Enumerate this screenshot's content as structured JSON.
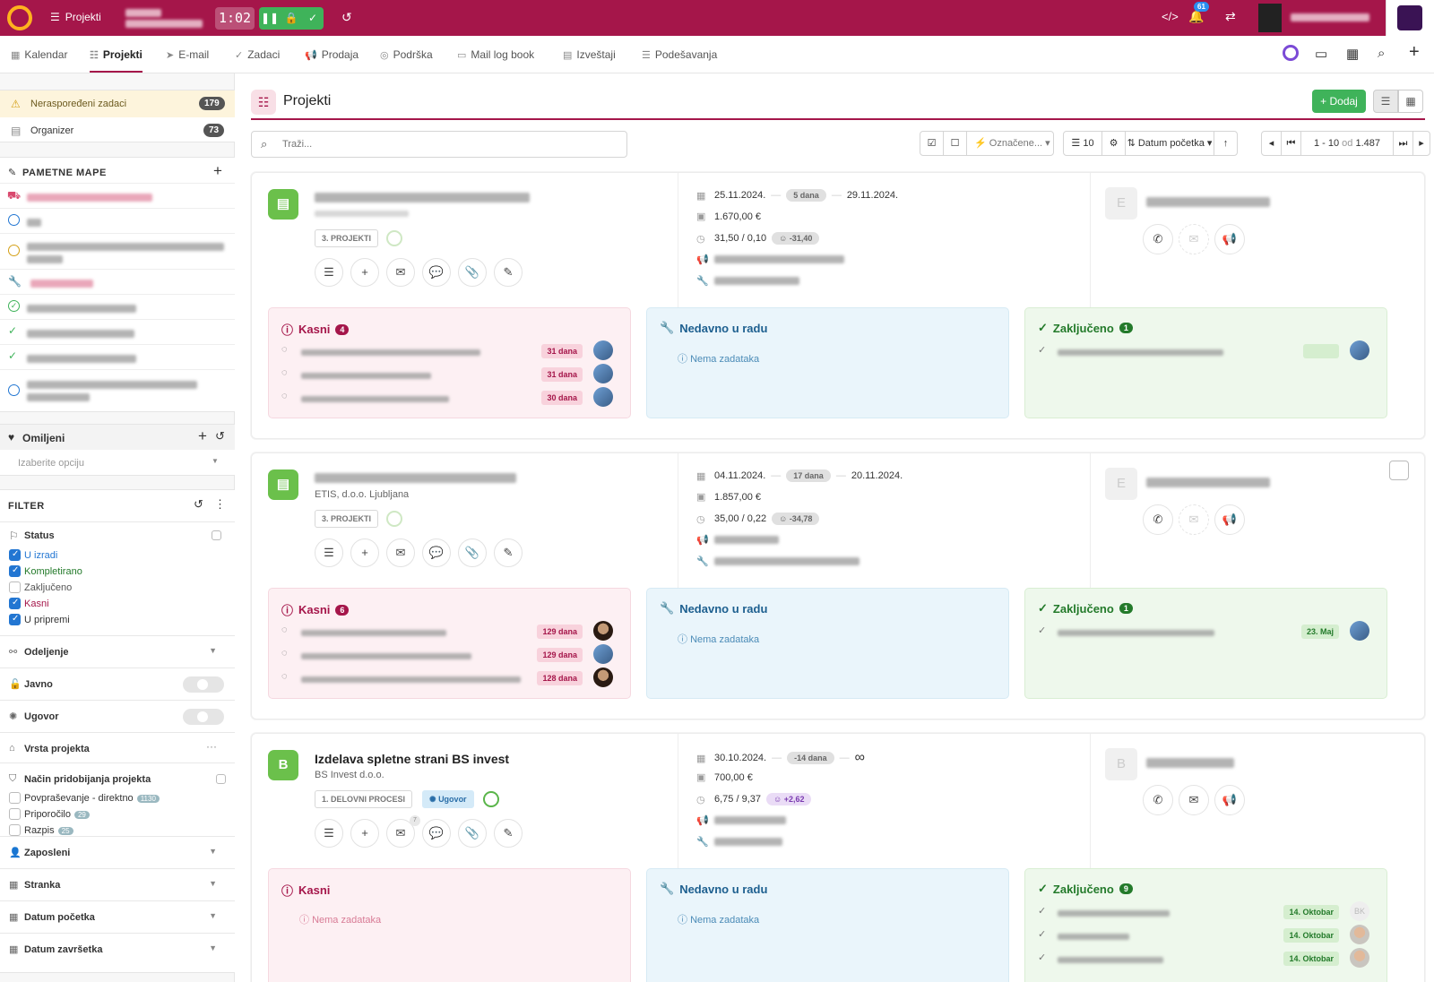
{
  "topbar": {
    "menu_label": "Projekti",
    "timer": "1:02",
    "notifications": "61"
  },
  "nav": {
    "items": [
      {
        "label": "Kalendar"
      },
      {
        "label": "Projekti"
      },
      {
        "label": "E-mail"
      },
      {
        "label": "Zadaci"
      },
      {
        "label": "Prodaja"
      },
      {
        "label": "Podrška"
      },
      {
        "label": "Mail log book"
      },
      {
        "label": "Izveštaji"
      },
      {
        "label": "Podešavanja"
      }
    ]
  },
  "sidebar": {
    "unassigned": {
      "label": "Neraspoređeni zadaci",
      "count": "179"
    },
    "organizer": {
      "label": "Organizer",
      "count": "73"
    },
    "smart_maps_title": "PAMETNE MAPE",
    "favorites": {
      "title": "Omiljeni",
      "placeholder": "Izaberite opciju"
    },
    "filter": {
      "title": "FILTER",
      "status_label": "Status",
      "statuses": [
        {
          "label": "U izradi",
          "checked": true,
          "color": "#2276d2"
        },
        {
          "label": "Kompletirano",
          "checked": true,
          "color": "#237a2a"
        },
        {
          "label": "Zaključeno",
          "checked": false,
          "color": "#555555"
        },
        {
          "label": "Kasni",
          "checked": true,
          "color": "#a5164a"
        },
        {
          "label": "U pripremi",
          "checked": true,
          "color": "#333333"
        }
      ],
      "odeljenje": "Odeljenje",
      "javno": "Javno",
      "ugovor": "Ugovor",
      "vrsta": "Vrsta projekta",
      "nacin": "Način pridobijanja projekta",
      "nacin_options": [
        {
          "label": "Povpraševanje - direktno",
          "count": "1130"
        },
        {
          "label": "Priporočilo",
          "count": "29"
        },
        {
          "label": "Razpis",
          "count": "25"
        }
      ],
      "zaposleni": "Zaposleni",
      "stranka": "Stranka",
      "datum_pocetka": "Datum početka",
      "datum_zavrsetka": "Datum završetka"
    }
  },
  "main": {
    "title": "Projekti",
    "add_button": "+ Dodaj",
    "search_placeholder": "Traži...",
    "toolbar": {
      "marked": "Označene...",
      "per_page": "10",
      "sort": "Datum početka",
      "pagination_range": "1 - 10",
      "pagination_of": "od",
      "pagination_total": "1.487"
    }
  },
  "projects": [
    {
      "phase": "3. PROJEKTI",
      "start": "25.11.2024.",
      "days": "5 dana",
      "end": "29.11.2024.",
      "amount": "1.670,00 €",
      "hours": "31,50 / 0,10",
      "hours_diff": "-31,40",
      "overdue": {
        "title": "Kasni",
        "count": "4",
        "tasks": [
          {
            "due": "31 dana"
          },
          {
            "due": "31 dana"
          },
          {
            "due": "30 dana"
          }
        ]
      },
      "recent": {
        "title": "Nedavno u radu",
        "empty": "Nema zadataka"
      },
      "done": {
        "title": "Zaključeno",
        "count": "1"
      },
      "contact_initial": "E"
    },
    {
      "subtitle": "ETIS, d.o.o. Ljubljana",
      "phase": "3. PROJEKTI",
      "start": "04.11.2024.",
      "days": "17 dana",
      "end": "20.11.2024.",
      "amount": "1.857,00 €",
      "hours": "35,00 / 0,22",
      "hours_diff": "-34,78",
      "overdue": {
        "title": "Kasni",
        "count": "6",
        "tasks": [
          {
            "due": "129 dana"
          },
          {
            "due": "129 dana"
          },
          {
            "due": "128 dana"
          }
        ]
      },
      "recent": {
        "title": "Nedavno u radu",
        "empty": "Nema zadataka"
      },
      "done": {
        "title": "Zaključeno",
        "count": "1",
        "date": "23. Maj"
      },
      "contact_initial": "E"
    },
    {
      "initial": "B",
      "title": "Izdelava spletne strani BS invest",
      "subtitle": "BS Invest d.o.o.",
      "phase": "1. DELOVNI PROCESI",
      "contract": "Ugovor",
      "start": "30.10.2024.",
      "days": "-14 dana",
      "end": "∞",
      "amount": "700,00 €",
      "hours": "6,75 / 9,37",
      "hours_diff": "+2,62",
      "mail_count": "7",
      "overdue": {
        "title": "Kasni",
        "empty": "Nema zadataka"
      },
      "recent": {
        "title": "Nedavno u radu",
        "empty": "Nema zadataka"
      },
      "done": {
        "title": "Zaključeno",
        "count": "9",
        "dates": [
          "14. Oktobar",
          "14. Oktobar",
          "14. Oktobar"
        ],
        "avatar_initials": "BK"
      },
      "contact_initial": "B"
    }
  ]
}
